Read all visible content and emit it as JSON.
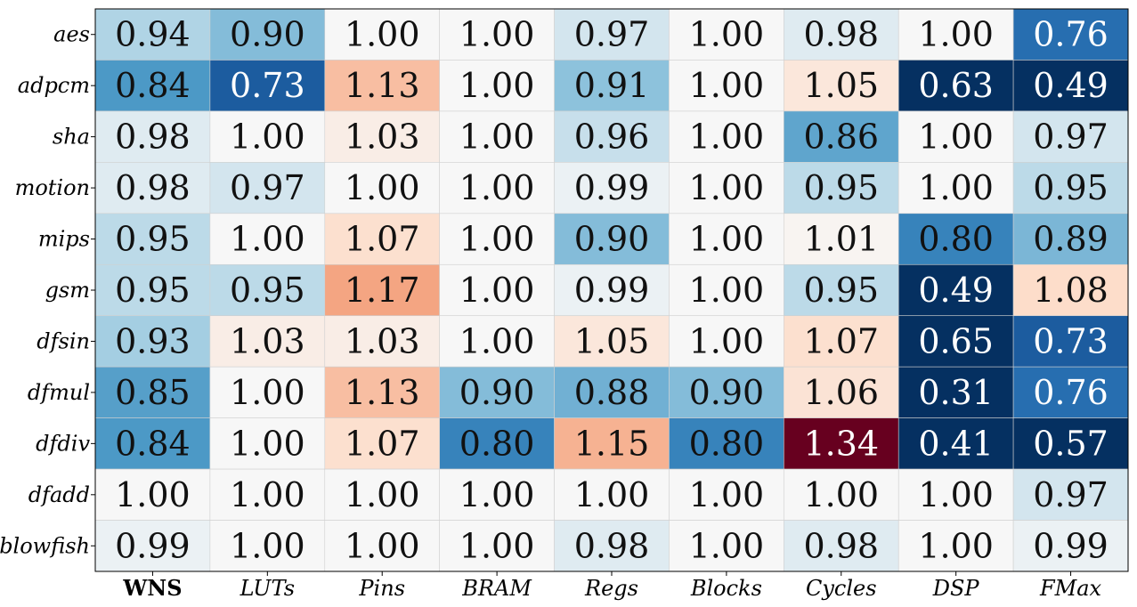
{
  "chart_data": {
    "type": "heatmap",
    "rows": [
      "aes",
      "adpcm",
      "sha",
      "motion",
      "mips",
      "gsm",
      "dfsin",
      "dfmul",
      "dfdiv",
      "dfadd",
      "blowfish"
    ],
    "columns": [
      "WNS",
      "LUTs",
      "Pins",
      "BRAM",
      "Regs",
      "Blocks",
      "Cycles",
      "DSP",
      "FMax"
    ],
    "bold_columns": [
      "WNS"
    ],
    "values": [
      [
        0.94,
        0.9,
        1.0,
        1.0,
        0.97,
        1.0,
        0.98,
        1.0,
        0.76
      ],
      [
        0.84,
        0.73,
        1.13,
        1.0,
        0.91,
        1.0,
        1.05,
        0.63,
        0.49
      ],
      [
        0.98,
        1.0,
        1.03,
        1.0,
        0.96,
        1.0,
        0.86,
        1.0,
        0.97
      ],
      [
        0.98,
        0.97,
        1.0,
        1.0,
        0.99,
        1.0,
        0.95,
        1.0,
        0.95
      ],
      [
        0.95,
        1.0,
        1.07,
        1.0,
        0.9,
        1.0,
        1.01,
        0.8,
        0.89
      ],
      [
        0.95,
        0.95,
        1.17,
        1.0,
        0.99,
        1.0,
        0.95,
        0.49,
        1.08
      ],
      [
        0.93,
        1.03,
        1.03,
        1.0,
        1.05,
        1.0,
        1.07,
        0.65,
        0.73
      ],
      [
        0.85,
        1.0,
        1.13,
        0.9,
        0.88,
        0.9,
        1.06,
        0.31,
        0.76
      ],
      [
        0.84,
        1.0,
        1.07,
        0.8,
        1.15,
        0.8,
        1.34,
        0.41,
        0.57
      ],
      [
        1.0,
        1.0,
        1.0,
        1.0,
        1.0,
        1.0,
        1.0,
        1.0,
        0.97
      ],
      [
        0.99,
        1.0,
        1.0,
        1.0,
        0.98,
        1.0,
        0.98,
        1.0,
        0.99
      ]
    ],
    "value_format": "2 decimals",
    "colormap": "RdBu_r",
    "color_center": 1.0,
    "color_range": [
      0.66,
      1.34
    ],
    "colorbar": false,
    "grid": true,
    "title": "",
    "xlabel": "",
    "ylabel": ""
  }
}
